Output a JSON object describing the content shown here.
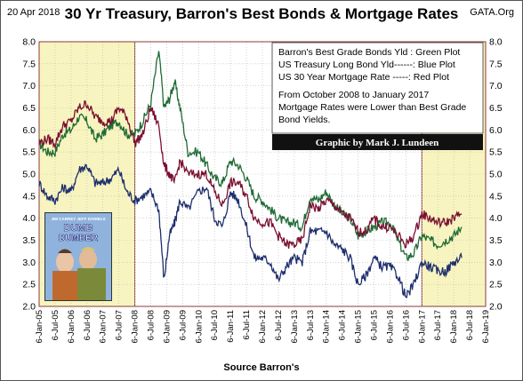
{
  "header": {
    "date": "20 Apr 2018",
    "title": "30 Yr Treasury, Barron's Best Bonds & Mortgage Rates",
    "site": "GATA.Org"
  },
  "legend": {
    "lines": [
      "Barron's Best Grade Bonds Yld : Green Plot",
      "US Treasury Long Bond Yld------: Blue Plot",
      "US 30 Year Mortgage Rate -----: Red Plot"
    ],
    "note_lines": [
      "From October 2008 to January 2017",
      "Mortgage Rates were Lower than Best Grade",
      "Bond Yields."
    ],
    "credit": "Graphic by Mark J. Lundeen"
  },
  "poster": {
    "top_names": "JIM CARREY   JEFF DANIELS",
    "title_line1": "DUMB",
    "title_line2": "DUMBER"
  },
  "colors": {
    "green": "#1f6b34",
    "blue": "#1f2f6e",
    "red": "#7a1030",
    "shade": "#f8f4c0",
    "frame": "#8b3a3a"
  },
  "chart_data": {
    "type": "line",
    "xlabel": "Source Barron's",
    "ylim": [
      2.0,
      8.0
    ],
    "yticks": [
      "2.0",
      "2.5",
      "3.0",
      "3.5",
      "4.0",
      "4.5",
      "5.0",
      "5.5",
      "6.0",
      "6.5",
      "7.0",
      "7.5",
      "8.0"
    ],
    "xticks": [
      "6-Jan-05",
      "6-Jul-05",
      "6-Jan-06",
      "6-Jul-06",
      "6-Jan-07",
      "6-Jul-07",
      "6-Jan-08",
      "6-Jul-08",
      "6-Jan-09",
      "6-Jul-09",
      "6-Jan-10",
      "6-Jul-10",
      "6-Jan-11",
      "6-Jul-11",
      "6-Jan-12",
      "6-Jul-12",
      "6-Jan-13",
      "6-Jul-13",
      "6-Jan-14",
      "6-Jul-14",
      "6-Jan-15",
      "6-Jul-15",
      "6-Jan-16",
      "6-Jul-16",
      "6-Jan-17",
      "6-Jul-17",
      "6-Jan-18",
      "6-Jul-18",
      "6-Jan-19"
    ],
    "shaded_periods": [
      [
        "2005-01",
        "2008-01"
      ],
      [
        "2017-01",
        "2019-01"
      ]
    ],
    "series": [
      {
        "name": "Barron's Best Grade Bonds Yld",
        "color": "green",
        "x": [
          "2005-01",
          "2005-04",
          "2005-07",
          "2005-10",
          "2006-01",
          "2006-04",
          "2006-07",
          "2006-10",
          "2007-01",
          "2007-04",
          "2007-07",
          "2007-10",
          "2008-01",
          "2008-04",
          "2008-07",
          "2008-10",
          "2008-12",
          "2009-02",
          "2009-04",
          "2009-06",
          "2009-09",
          "2010-01",
          "2010-04",
          "2010-07",
          "2010-10",
          "2011-01",
          "2011-04",
          "2011-07",
          "2011-10",
          "2012-01",
          "2012-04",
          "2012-07",
          "2012-10",
          "2013-01",
          "2013-04",
          "2013-07",
          "2013-10",
          "2014-01",
          "2014-04",
          "2014-07",
          "2014-10",
          "2015-01",
          "2015-04",
          "2015-07",
          "2015-10",
          "2016-01",
          "2016-04",
          "2016-07",
          "2016-10",
          "2017-01",
          "2017-04",
          "2017-07",
          "2017-10",
          "2018-01",
          "2018-04"
        ],
        "values": [
          5.7,
          5.5,
          5.5,
          5.9,
          6.0,
          6.3,
          6.2,
          5.8,
          5.9,
          6.1,
          6.2,
          5.9,
          5.9,
          6.2,
          6.6,
          7.8,
          6.5,
          6.7,
          7.1,
          6.5,
          5.5,
          5.5,
          5.2,
          4.9,
          4.8,
          5.3,
          5.2,
          4.9,
          4.5,
          4.4,
          4.2,
          4.0,
          3.9,
          3.9,
          3.8,
          4.5,
          4.4,
          4.6,
          4.3,
          4.1,
          4.0,
          3.6,
          3.7,
          3.8,
          3.9,
          3.9,
          3.5,
          3.1,
          3.2,
          3.6,
          3.5,
          3.4,
          3.5,
          3.6,
          3.8
        ]
      },
      {
        "name": "US Treasury Long Bond Yld",
        "color": "blue",
        "x": [
          "2005-01",
          "2005-04",
          "2005-07",
          "2005-10",
          "2006-01",
          "2006-04",
          "2006-07",
          "2006-10",
          "2007-01",
          "2007-04",
          "2007-07",
          "2007-10",
          "2008-01",
          "2008-04",
          "2008-07",
          "2008-10",
          "2008-12",
          "2009-02",
          "2009-04",
          "2009-06",
          "2009-09",
          "2010-01",
          "2010-04",
          "2010-07",
          "2010-10",
          "2011-01",
          "2011-04",
          "2011-07",
          "2011-10",
          "2012-01",
          "2012-04",
          "2012-07",
          "2012-10",
          "2013-01",
          "2013-04",
          "2013-07",
          "2013-10",
          "2014-01",
          "2014-04",
          "2014-07",
          "2014-10",
          "2015-01",
          "2015-04",
          "2015-07",
          "2015-10",
          "2016-01",
          "2016-04",
          "2016-07",
          "2016-10",
          "2017-01",
          "2017-04",
          "2017-07",
          "2017-10",
          "2018-01",
          "2018-04"
        ],
        "values": [
          4.8,
          4.5,
          4.4,
          4.7,
          4.6,
          5.1,
          5.2,
          4.8,
          4.8,
          4.9,
          5.1,
          4.6,
          4.4,
          4.5,
          4.6,
          4.2,
          2.6,
          3.6,
          3.9,
          4.4,
          4.2,
          4.6,
          4.7,
          4.0,
          3.8,
          4.6,
          4.4,
          3.8,
          3.1,
          3.1,
          3.0,
          2.6,
          2.9,
          3.1,
          3.0,
          3.7,
          3.7,
          3.7,
          3.4,
          3.3,
          3.1,
          2.5,
          2.7,
          3.1,
          2.9,
          2.9,
          2.7,
          2.2,
          2.5,
          3.0,
          2.9,
          2.8,
          2.8,
          3.0,
          3.1
        ]
      },
      {
        "name": "US 30 Year Mortgage Rate",
        "color": "red",
        "x": [
          "2005-01",
          "2005-04",
          "2005-07",
          "2005-10",
          "2006-01",
          "2006-04",
          "2006-07",
          "2006-10",
          "2007-01",
          "2007-04",
          "2007-07",
          "2007-10",
          "2008-01",
          "2008-04",
          "2008-07",
          "2008-10",
          "2008-12",
          "2009-02",
          "2009-04",
          "2009-06",
          "2009-09",
          "2010-01",
          "2010-04",
          "2010-07",
          "2010-10",
          "2011-01",
          "2011-04",
          "2011-07",
          "2011-10",
          "2012-01",
          "2012-04",
          "2012-07",
          "2012-10",
          "2013-01",
          "2013-04",
          "2013-07",
          "2013-10",
          "2014-01",
          "2014-04",
          "2014-07",
          "2014-10",
          "2015-01",
          "2015-04",
          "2015-07",
          "2015-10",
          "2016-01",
          "2016-04",
          "2016-07",
          "2016-10",
          "2017-01",
          "2017-04",
          "2017-07",
          "2017-10",
          "2018-01",
          "2018-04"
        ],
        "values": [
          5.7,
          5.8,
          5.7,
          6.1,
          6.2,
          6.5,
          6.6,
          6.3,
          6.2,
          6.2,
          6.5,
          6.3,
          5.7,
          5.9,
          6.5,
          6.1,
          5.2,
          5.0,
          4.8,
          5.3,
          5.0,
          5.0,
          5.0,
          4.6,
          4.3,
          4.8,
          4.8,
          4.5,
          4.0,
          3.9,
          3.9,
          3.6,
          3.4,
          3.4,
          3.5,
          4.3,
          4.2,
          4.4,
          4.3,
          4.1,
          4.0,
          3.7,
          3.7,
          4.0,
          3.8,
          3.8,
          3.6,
          3.4,
          3.6,
          4.1,
          4.0,
          3.9,
          3.9,
          4.0,
          4.1
        ]
      }
    ]
  }
}
